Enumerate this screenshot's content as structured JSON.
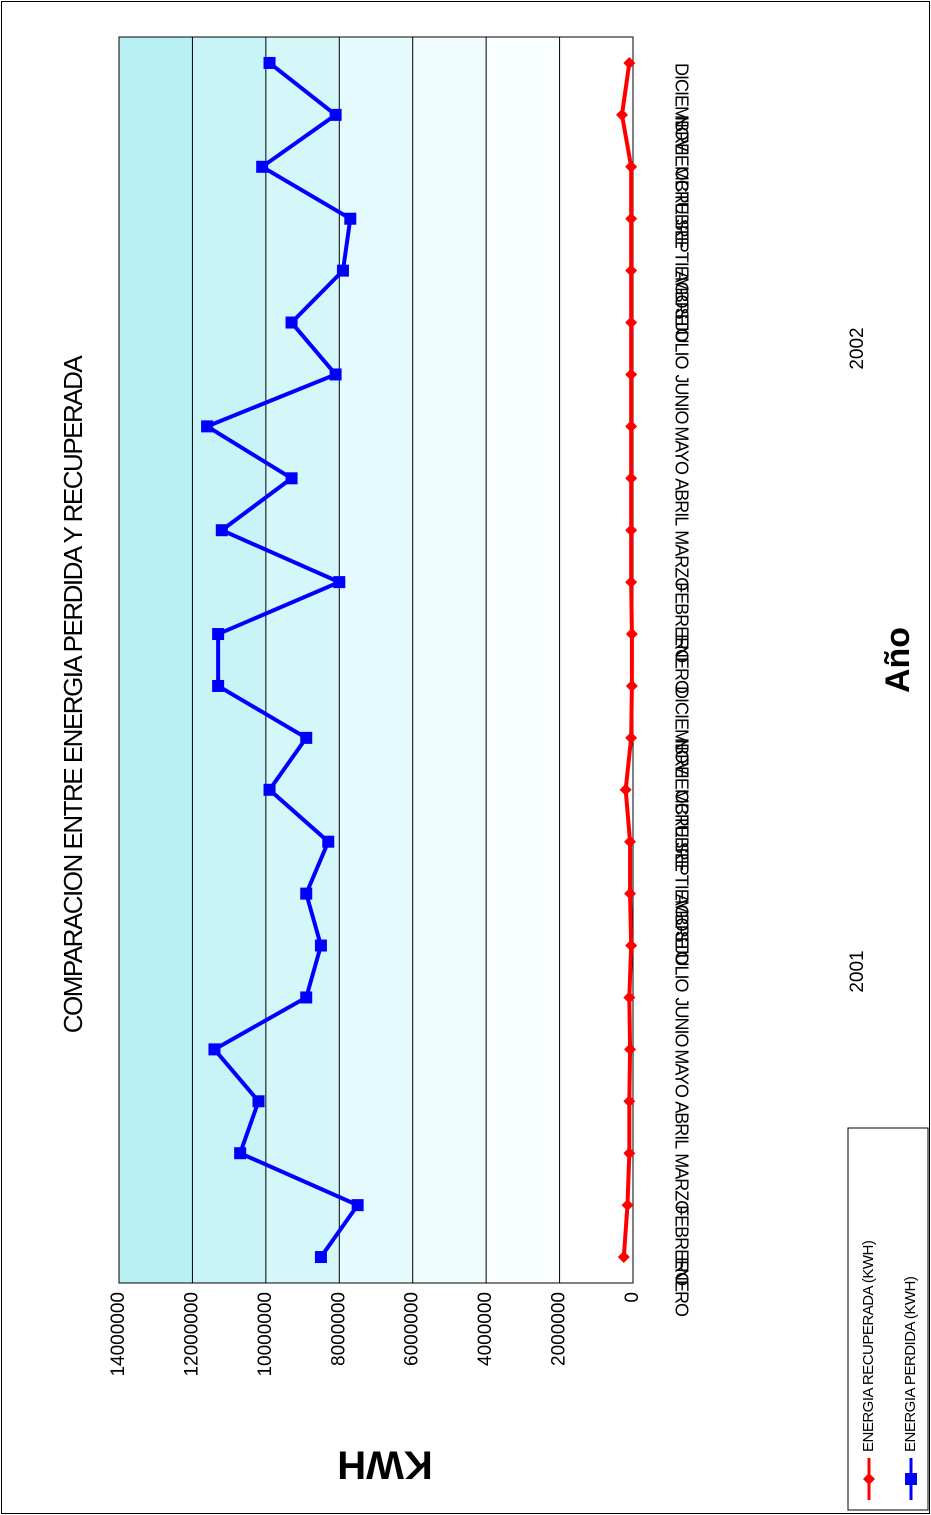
{
  "chart_data": {
    "type": "line",
    "title": "COMPARACION ENTRE ENERGIA PERDIDA Y RECUPERADA",
    "xlabel": "Año",
    "ylabel": "KWH",
    "ylim": [
      0,
      14000000
    ],
    "yticks": [
      "0",
      "2000000",
      "4000000",
      "6000000",
      "8000000",
      "10000000",
      "12000000",
      "14000000"
    ],
    "categories": [
      "ENERO",
      "FEBRERO",
      "MARZO",
      "ABRIL",
      "MAYO",
      "JUNIO",
      "JULIO",
      "AGOSTO",
      "SEPTIEMBRE",
      "OCTUBRE",
      "NOVIEMBRE",
      "DICIEMBRE",
      "ENERO",
      "FEBRERO",
      "MARZO",
      "ABRIL",
      "MAYO",
      "JUNIO",
      "JULIO",
      "AGOSTO",
      "SEPTIEMBRE",
      "OCTUBRE",
      "NOVIEMBRE",
      "DICIEMBRE"
    ],
    "years": [
      {
        "label": "2001",
        "start": 0,
        "end": 11
      },
      {
        "label": "2002",
        "start": 12,
        "end": 23
      }
    ],
    "series": [
      {
        "name": "ENERGIA PERDIDA (KWH)",
        "color": "#0000ff",
        "marker": "square",
        "values": [
          8500000,
          7500000,
          10700000,
          10200000,
          11400000,
          8900000,
          8500000,
          8900000,
          8300000,
          9900000,
          8900000,
          11300000,
          11300000,
          8000000,
          11200000,
          9300000,
          11600000,
          8100000,
          9300000,
          7900000,
          7700000,
          10100000,
          8100000,
          9900000
        ]
      },
      {
        "name": "ENERGIA RECUPERADA (KWH)",
        "color": "#ff0000",
        "marker": "diamond",
        "values": [
          250000,
          150000,
          100000,
          100000,
          80000,
          100000,
          50000,
          80000,
          80000,
          200000,
          50000,
          30000,
          30000,
          50000,
          50000,
          50000,
          50000,
          50000,
          50000,
          50000,
          50000,
          50000,
          300000,
          100000
        ]
      }
    ],
    "grid": true,
    "legend": "bottom-right",
    "plot_bands": [
      "#b8f0f4",
      "#c8f4f8",
      "#d6f7fa",
      "#e4fafc",
      "#effcfd",
      "#f9fefe",
      "#ffffff"
    ]
  }
}
